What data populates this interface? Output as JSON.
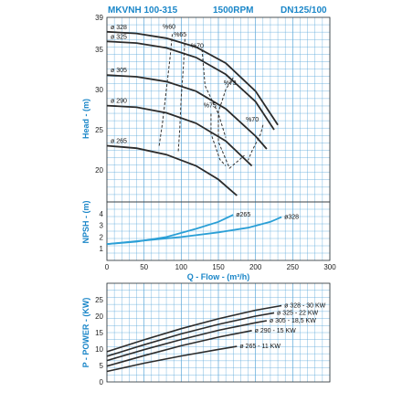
{
  "header": {
    "model": "MKVNH 100-315",
    "speed": "1500RPM",
    "size": "DN125/100"
  },
  "colors": {
    "grid": "#5aa7d9",
    "curve": "#2b2b2b",
    "npsh": "#2a9fd6",
    "accent": "#1a86c8"
  },
  "chart_data": [
    {
      "type": "line",
      "name": "head",
      "ylabel": "Head - (m)",
      "xlim": [
        0,
        300
      ],
      "ylim": [
        16,
        39
      ],
      "yticks": [
        20,
        25,
        30,
        35,
        39
      ],
      "series": [
        {
          "name": "ø 328",
          "x": [
            0,
            40,
            80,
            120,
            160,
            200,
            230
          ],
          "y": [
            37.2,
            37.0,
            36.4,
            35.3,
            33.3,
            29.8,
            25.6
          ]
        },
        {
          "name": "ø 325",
          "x": [
            0,
            40,
            80,
            120,
            160,
            200,
            225
          ],
          "y": [
            36.0,
            35.8,
            35.2,
            34.0,
            31.9,
            28.5,
            25.0
          ]
        },
        {
          "name": "ø 305",
          "x": [
            0,
            40,
            80,
            120,
            160,
            200,
            215
          ],
          "y": [
            31.8,
            31.6,
            31.0,
            29.8,
            27.6,
            24.2,
            22.6
          ]
        },
        {
          "name": "ø 290",
          "x": [
            0,
            40,
            80,
            120,
            160,
            195
          ],
          "y": [
            28.0,
            27.8,
            27.1,
            25.8,
            23.6,
            20.5
          ]
        },
        {
          "name": "ø 265",
          "x": [
            0,
            40,
            80,
            120,
            150,
            175
          ],
          "y": [
            23.0,
            22.7,
            21.9,
            20.5,
            18.8,
            16.8
          ]
        }
      ],
      "efficiency": [
        {
          "label": "%60",
          "x": [
            88,
            85,
            80,
            75,
            70
          ],
          "y": [
            36.9,
            34.0,
            30.0,
            26.0,
            22.8
          ]
        },
        {
          "label": "%65",
          "x": [
            105,
            103,
            100,
            98,
            96
          ],
          "y": [
            36.3,
            33.0,
            29.0,
            25.0,
            22.3
          ]
        },
        {
          "label": "%70",
          "x": [
            128,
            132,
            150,
            160
          ],
          "y": [
            35.0,
            30.5,
            27.0,
            24.0
          ]
        },
        {
          "label": "%73",
          "x": [
            170,
            160,
            150,
            150,
            165,
            185
          ],
          "y": [
            31.5,
            30.0,
            27.2,
            23.5,
            20.2,
            21.8
          ]
        },
        {
          "label": "%75",
          "x": [
            140,
            140,
            152,
            160
          ],
          "y": [
            27.0,
            24.5,
            21.3,
            20.5
          ]
        },
        {
          "label": "%70",
          "x": [
            210,
            207,
            195,
            190
          ],
          "y": [
            25.6,
            24.5,
            22.3,
            21.2
          ]
        }
      ],
      "eff_labels": [
        {
          "text": "%60",
          "x": 75,
          "y": 37.6
        },
        {
          "text": "%65",
          "x": 90,
          "y": 36.6
        },
        {
          "text": "%70",
          "x": 113,
          "y": 35.2
        },
        {
          "text": "%73",
          "x": 157,
          "y": 30.6
        },
        {
          "text": "%75",
          "x": 130,
          "y": 27.8
        },
        {
          "text": "%70",
          "x": 187,
          "y": 26.0
        }
      ]
    },
    {
      "type": "line",
      "name": "npsh",
      "ylabel": "NPSH - (m)",
      "xlabel": "Q - Flow - (m³/h)",
      "xlim": [
        0,
        300
      ],
      "xticks": [
        0,
        50,
        100,
        150,
        200,
        250,
        300
      ],
      "ylim": [
        0,
        5
      ],
      "yticks": [
        1,
        2,
        3,
        4
      ],
      "series": [
        {
          "name": "ø265",
          "x": [
            0,
            40,
            80,
            120,
            150,
            170
          ],
          "y": [
            1.4,
            1.6,
            2.0,
            2.7,
            3.3,
            3.9
          ]
        },
        {
          "name": "ø328",
          "x": [
            0,
            50,
            100,
            150,
            190,
            220,
            235
          ],
          "y": [
            1.4,
            1.7,
            2.0,
            2.4,
            2.8,
            3.3,
            3.7
          ]
        }
      ]
    },
    {
      "type": "line",
      "name": "power",
      "ylabel": "P - POWER - (KW)",
      "xlim": [
        0,
        300
      ],
      "ylim": [
        0,
        30
      ],
      "yticks": [
        0,
        5,
        10,
        15,
        20,
        25
      ],
      "series": [
        {
          "name": "ø 328 - 30 KW",
          "x": [
            0,
            50,
            100,
            150,
            200,
            235
          ],
          "y": [
            9.2,
            12.8,
            16.2,
            19.2,
            21.8,
            23.2
          ]
        },
        {
          "name": "ø 325 - 22 KW",
          "x": [
            0,
            50,
            100,
            150,
            200,
            225
          ],
          "y": [
            7.8,
            11.3,
            14.6,
            17.5,
            20.0,
            21.0
          ]
        },
        {
          "name": "ø 305 - 18,5 KW",
          "x": [
            0,
            50,
            100,
            150,
            200,
            215
          ],
          "y": [
            6.5,
            9.8,
            12.9,
            15.7,
            18.0,
            18.6
          ]
        },
        {
          "name": "ø 290 - 15 KW",
          "x": [
            0,
            50,
            100,
            150,
            195
          ],
          "y": [
            4.8,
            8.0,
            11.0,
            13.6,
            15.6
          ]
        },
        {
          "name": "ø 265 - 11 KW",
          "x": [
            0,
            50,
            100,
            150,
            175
          ],
          "y": [
            3.2,
            5.7,
            7.9,
            9.9,
            10.8
          ]
        }
      ]
    }
  ]
}
